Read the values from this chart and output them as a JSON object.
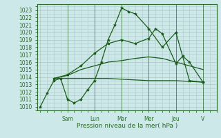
{
  "title": "",
  "xlabel": "Pression niveau de la mer( hPa )",
  "bg_color": "#cce8e8",
  "grid_color": "#b0c8c8",
  "spine_color": "#2d6a2d",
  "tick_color": "#2d6a2d",
  "ylim": [
    1009.5,
    1023.8
  ],
  "yticks": [
    1010,
    1011,
    1012,
    1013,
    1014,
    1015,
    1016,
    1017,
    1018,
    1019,
    1020,
    1021,
    1022,
    1023
  ],
  "xlim": [
    -0.2,
    13.0
  ],
  "day_labels": [
    "",
    "Sam",
    "Lun",
    "Mar",
    "Mer",
    "Jeu",
    "V"
  ],
  "day_positions": [
    0,
    2,
    4,
    6,
    8,
    10,
    12
  ],
  "series": [
    {
      "x": [
        0,
        0.5,
        1.0,
        1.5,
        2.0,
        2.5,
        3.0,
        3.5,
        4.0,
        4.5,
        5.0,
        5.5,
        6.0,
        6.5,
        7.0,
        8.0,
        9.0,
        10.0,
        11.0,
        12.0
      ],
      "y": [
        1010.0,
        1011.8,
        1013.5,
        1013.8,
        1011.0,
        1010.5,
        1011.0,
        1012.3,
        1013.5,
        1016.0,
        1019.0,
        1021.0,
        1023.3,
        1022.8,
        1022.5,
        1020.5,
        1018.0,
        1020.0,
        1013.5,
        1013.3
      ],
      "marker": "*",
      "linewidth": 0.9,
      "markersize": 3,
      "color": "#1a5c1a"
    },
    {
      "x": [
        1.0,
        2.0,
        3.0,
        4.0,
        5.0,
        6.0,
        7.0,
        8.0,
        9.0,
        10.0,
        11.0,
        12.0
      ],
      "y": [
        1013.8,
        1013.8,
        1013.8,
        1013.8,
        1013.8,
        1013.7,
        1013.6,
        1013.5,
        1013.5,
        1013.5,
        1013.4,
        1013.3
      ],
      "marker": null,
      "linewidth": 0.9,
      "markersize": 0,
      "color": "#1a5c1a"
    },
    {
      "x": [
        1.0,
        2.0,
        3.0,
        4.0,
        5.0,
        6.0,
        7.0,
        8.0,
        9.0,
        10.0,
        11.0,
        12.0
      ],
      "y": [
        1013.8,
        1014.2,
        1015.0,
        1015.5,
        1016.0,
        1016.2,
        1016.5,
        1016.7,
        1016.5,
        1016.0,
        1015.5,
        1015.0
      ],
      "marker": null,
      "linewidth": 0.9,
      "markersize": 0,
      "color": "#1a5c1a"
    },
    {
      "x": [
        1.0,
        2.0,
        3.0,
        4.0,
        5.0,
        6.0,
        7.0,
        8.0,
        8.5,
        9.0,
        10.0,
        10.5,
        11.0,
        12.0
      ],
      "y": [
        1013.8,
        1014.3,
        1015.5,
        1017.2,
        1018.5,
        1019.0,
        1018.5,
        1019.2,
        1020.5,
        1019.8,
        1015.8,
        1016.8,
        1016.0,
        1013.3
      ],
      "marker": "*",
      "linewidth": 0.9,
      "markersize": 3,
      "color": "#1a5c1a"
    }
  ]
}
